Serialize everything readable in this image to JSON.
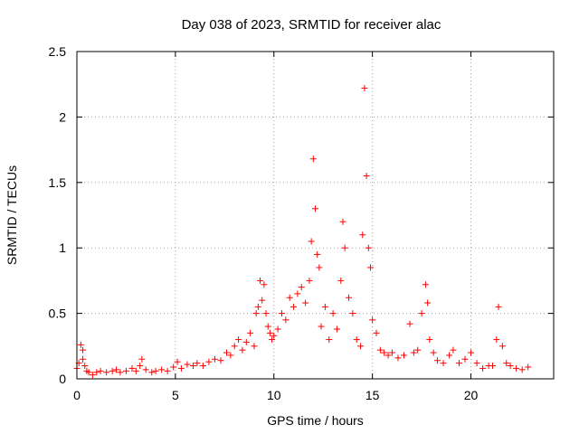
{
  "chart_data": {
    "type": "scatter",
    "title": "Day 038 of 2023, SRMTID for receiver alac",
    "xlabel": "GPS time / hours",
    "ylabel": "SRMTID / TECUs",
    "xlim": [
      0,
      24.2
    ],
    "ylim": [
      0,
      2.5
    ],
    "xticks": [
      0,
      5,
      10,
      15,
      20
    ],
    "yticks": [
      0,
      0.5,
      1,
      1.5,
      2,
      2.5
    ],
    "xtick_labels": [
      "0",
      "5",
      "10",
      "15",
      "20"
    ],
    "ytick_labels": [
      "0",
      "0.5",
      "1",
      "1.5",
      "2",
      "2.5"
    ],
    "grid": true,
    "marker": "+",
    "series_color": "#ff0000",
    "series": [
      {
        "name": "SRMTID",
        "x": [
          0.0,
          0.1,
          0.2,
          0.3,
          0.3,
          0.4,
          0.5,
          0.6,
          0.8,
          1.0,
          1.2,
          1.5,
          1.8,
          2.0,
          2.2,
          2.5,
          2.8,
          3.0,
          3.2,
          3.3,
          3.5,
          3.8,
          4.0,
          4.3,
          4.6,
          4.9,
          5.1,
          5.3,
          5.6,
          5.9,
          6.1,
          6.4,
          6.7,
          7.0,
          7.3,
          7.6,
          7.8,
          8.0,
          8.2,
          8.4,
          8.6,
          8.8,
          9.0,
          9.1,
          9.2,
          9.3,
          9.4,
          9.5,
          9.6,
          9.7,
          9.8,
          9.9,
          10.0,
          10.2,
          10.4,
          10.6,
          10.8,
          11.0,
          11.2,
          11.4,
          11.6,
          11.8,
          11.9,
          12.0,
          12.1,
          12.2,
          12.3,
          12.4,
          12.6,
          12.8,
          13.0,
          13.2,
          13.4,
          13.5,
          13.6,
          13.8,
          14.0,
          14.2,
          14.4,
          14.5,
          14.6,
          14.7,
          14.8,
          14.9,
          15.0,
          15.2,
          15.4,
          15.6,
          15.8,
          16.0,
          16.3,
          16.6,
          16.9,
          17.1,
          17.3,
          17.5,
          17.7,
          17.8,
          17.9,
          18.1,
          18.3,
          18.6,
          18.9,
          19.1,
          19.4,
          19.7,
          20.0,
          20.3,
          20.6,
          20.9,
          21.1,
          21.3,
          21.4,
          21.6,
          21.8,
          22.0,
          22.3,
          22.6,
          22.9
        ],
        "values": [
          0.08,
          0.12,
          0.26,
          0.15,
          0.22,
          0.1,
          0.06,
          0.05,
          0.03,
          0.05,
          0.06,
          0.05,
          0.06,
          0.07,
          0.05,
          0.06,
          0.08,
          0.06,
          0.1,
          0.15,
          0.07,
          0.05,
          0.06,
          0.07,
          0.06,
          0.09,
          0.13,
          0.08,
          0.11,
          0.1,
          0.12,
          0.1,
          0.13,
          0.15,
          0.14,
          0.2,
          0.18,
          0.25,
          0.3,
          0.22,
          0.28,
          0.35,
          0.25,
          0.5,
          0.55,
          0.75,
          0.6,
          0.72,
          0.5,
          0.4,
          0.35,
          0.3,
          0.33,
          0.38,
          0.5,
          0.45,
          0.62,
          0.55,
          0.65,
          0.7,
          0.58,
          0.75,
          1.05,
          1.68,
          1.3,
          0.95,
          0.85,
          0.4,
          0.55,
          0.3,
          0.5,
          0.38,
          0.75,
          1.2,
          1.0,
          0.62,
          0.5,
          0.3,
          0.25,
          1.1,
          2.22,
          1.55,
          1.0,
          0.85,
          0.45,
          0.35,
          0.22,
          0.2,
          0.18,
          0.2,
          0.16,
          0.18,
          0.42,
          0.2,
          0.22,
          0.5,
          0.72,
          0.58,
          0.3,
          0.2,
          0.14,
          0.12,
          0.18,
          0.22,
          0.12,
          0.15,
          0.2,
          0.12,
          0.08,
          0.1,
          0.1,
          0.3,
          0.55,
          0.25,
          0.12,
          0.1,
          0.08,
          0.07,
          0.09
        ]
      }
    ]
  }
}
